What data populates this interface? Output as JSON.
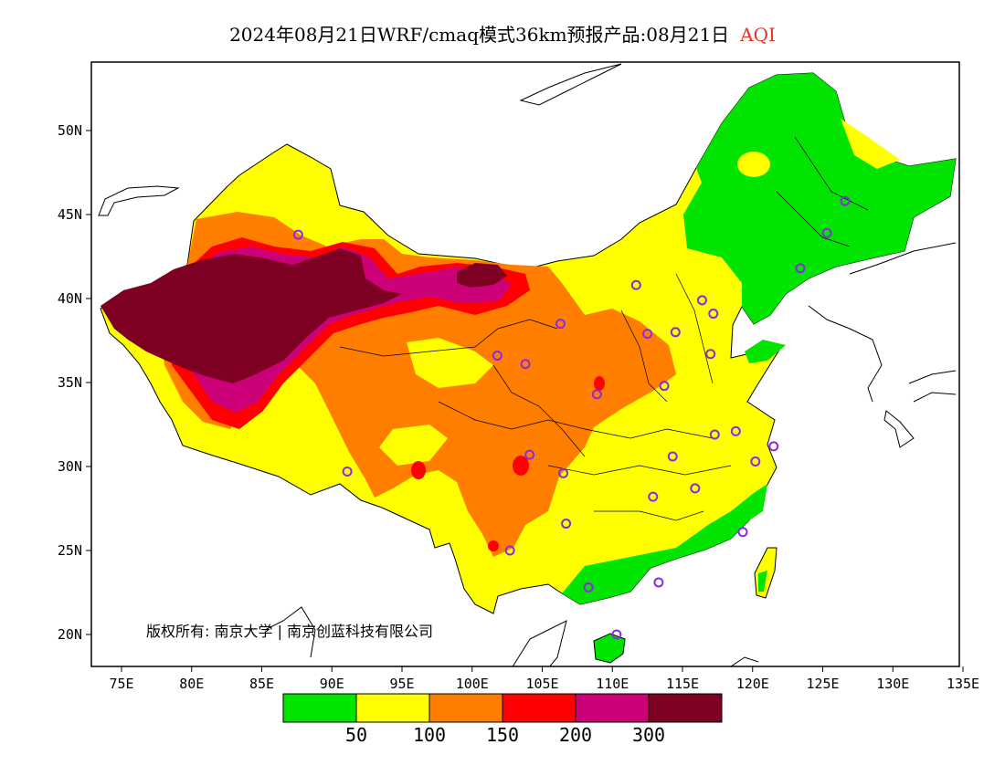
{
  "title": {
    "text": "2024年08月21日WRF/cmaq模式36km预报产品:08月21日",
    "variable": "AQI",
    "variable_color": "#e8332a"
  },
  "map": {
    "lon_ticks": [
      "75E",
      "80E",
      "85E",
      "90E",
      "95E",
      "100E",
      "105E",
      "110E",
      "115E",
      "120E",
      "125E",
      "130E",
      "135E"
    ],
    "lat_ticks": [
      "50N",
      "45N",
      "40N",
      "35N",
      "30N",
      "25N",
      "20N"
    ],
    "copyright": "版权所有: 南京大学 | 南京创蓝科技有限公司",
    "station_marker": "circle",
    "station_color": "#8a2be2",
    "stations": [
      {
        "lon": 87.6,
        "lat": 43.8
      },
      {
        "lon": 91.1,
        "lat": 29.7
      },
      {
        "lon": 101.8,
        "lat": 36.6
      },
      {
        "lon": 103.8,
        "lat": 36.1
      },
      {
        "lon": 106.3,
        "lat": 38.5
      },
      {
        "lon": 111.7,
        "lat": 40.8
      },
      {
        "lon": 112.5,
        "lat": 37.9
      },
      {
        "lon": 114.5,
        "lat": 38.0
      },
      {
        "lon": 116.4,
        "lat": 39.9
      },
      {
        "lon": 117.2,
        "lat": 39.1
      },
      {
        "lon": 117.0,
        "lat": 36.7
      },
      {
        "lon": 113.7,
        "lat": 34.8
      },
      {
        "lon": 108.9,
        "lat": 34.3
      },
      {
        "lon": 104.1,
        "lat": 30.7
      },
      {
        "lon": 106.5,
        "lat": 29.6
      },
      {
        "lon": 106.7,
        "lat": 26.6
      },
      {
        "lon": 102.7,
        "lat": 25.0
      },
      {
        "lon": 108.3,
        "lat": 22.8
      },
      {
        "lon": 113.3,
        "lat": 23.1
      },
      {
        "lon": 110.3,
        "lat": 20.0
      },
      {
        "lon": 112.9,
        "lat": 28.2
      },
      {
        "lon": 114.3,
        "lat": 30.6
      },
      {
        "lon": 115.9,
        "lat": 28.7
      },
      {
        "lon": 117.3,
        "lat": 31.9
      },
      {
        "lon": 118.8,
        "lat": 32.1
      },
      {
        "lon": 120.2,
        "lat": 30.3
      },
      {
        "lon": 121.5,
        "lat": 31.2
      },
      {
        "lon": 119.3,
        "lat": 26.1
      },
      {
        "lon": 123.4,
        "lat": 41.8
      },
      {
        "lon": 125.3,
        "lat": 43.9
      },
      {
        "lon": 126.6,
        "lat": 45.8
      }
    ]
  },
  "legend": {
    "colors": [
      "#00e400",
      "#ffff00",
      "#ff7e00",
      "#ff0000",
      "#cc0077",
      "#7e0023"
    ],
    "labels": [
      "50",
      "100",
      "150",
      "200",
      "300"
    ]
  }
}
